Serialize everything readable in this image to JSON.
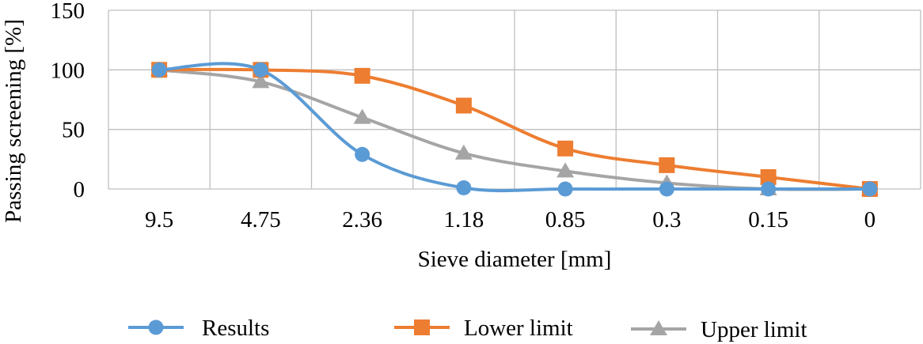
{
  "chart_data": {
    "type": "line",
    "title": "",
    "xlabel": "Sieve diameter [mm]",
    "ylabel": "Passing screening [%]",
    "categories": [
      "9.5",
      "4.75",
      "2.36",
      "1.18",
      "0.85",
      "0.3",
      "0.15",
      "0"
    ],
    "ylim": [
      0,
      150
    ],
    "yticks": [
      0,
      50,
      100,
      150
    ],
    "grid": true,
    "legend_position": "bottom",
    "smooth": true,
    "series": [
      {
        "name": "Results",
        "marker": "circle",
        "color": "#5b9bd5",
        "values": [
          100,
          100,
          29,
          1,
          0,
          0,
          0,
          0
        ]
      },
      {
        "name": "Lower limit",
        "marker": "square",
        "color": "#ed7d31",
        "values": [
          100,
          100,
          95,
          70,
          34,
          20,
          10,
          0
        ]
      },
      {
        "name": "Upper limit",
        "marker": "triangle",
        "color": "#a5a5a5",
        "values": [
          100,
          90,
          60,
          30,
          15,
          5,
          0,
          0
        ]
      }
    ]
  }
}
